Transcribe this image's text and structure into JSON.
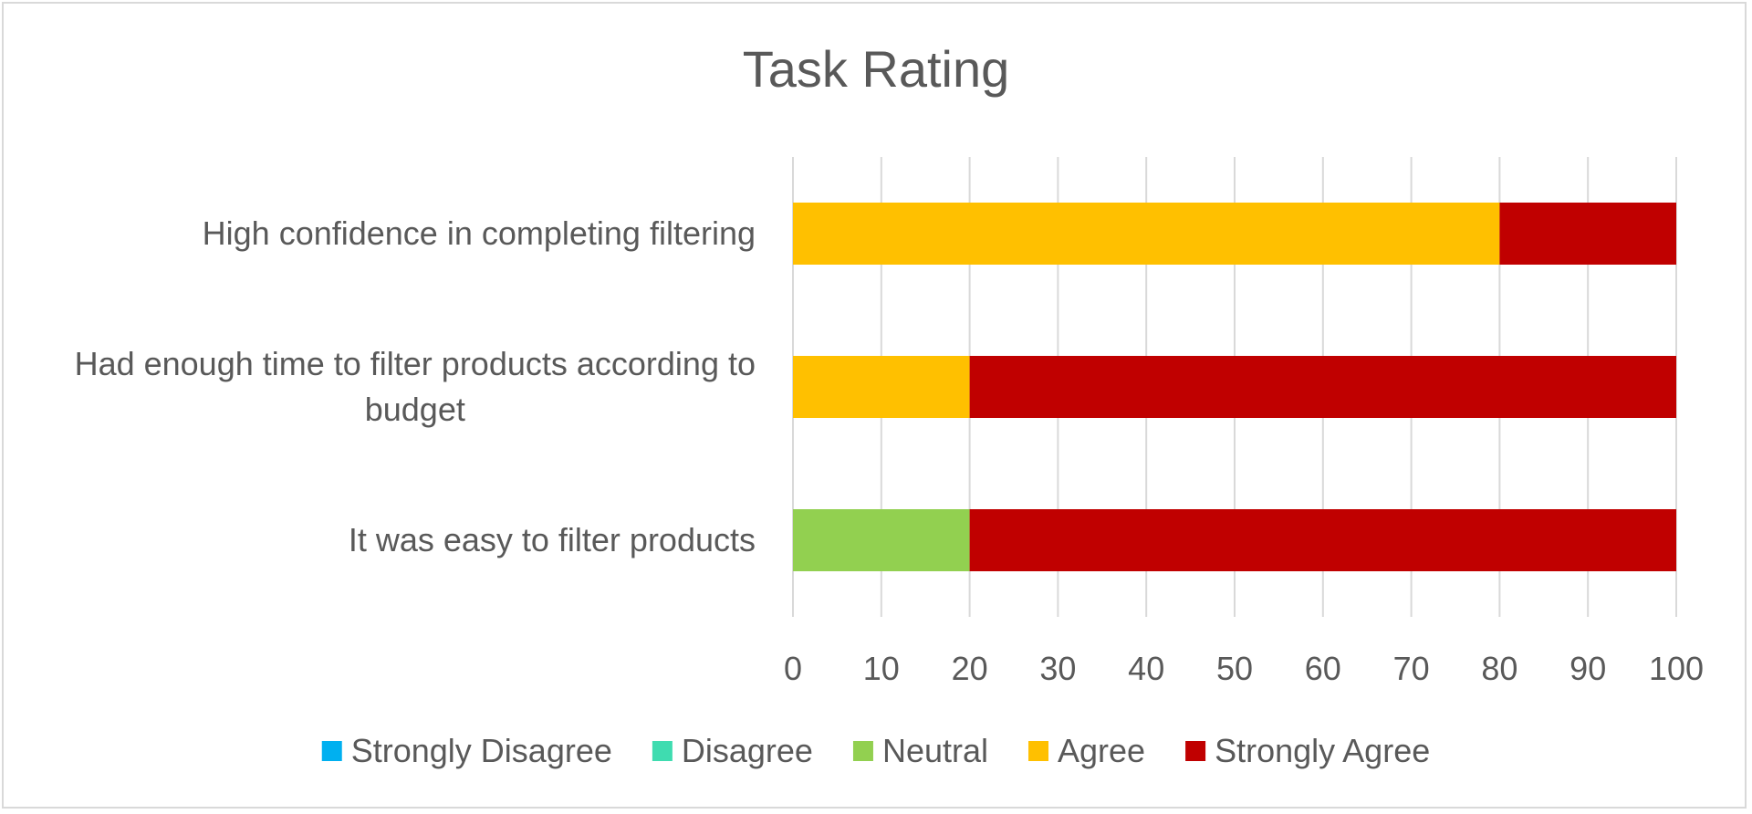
{
  "chart_data": {
    "type": "bar",
    "orientation": "horizontal",
    "stacked": true,
    "title": "Task Rating",
    "categories": [
      [
        "High confidence in completing filtering"
      ],
      [
        "Had enough time to filter products according to",
        "budget"
      ],
      [
        "It was easy to filter products"
      ]
    ],
    "series": [
      {
        "name": "Strongly Disagree",
        "color": "#00b0f0",
        "values": [
          0,
          0,
          0
        ]
      },
      {
        "name": "Disagree",
        "color": "#3fdcb0",
        "values": [
          0,
          0,
          0
        ]
      },
      {
        "name": "Neutral",
        "color": "#92d050",
        "values": [
          0,
          0,
          20
        ]
      },
      {
        "name": "Agree",
        "color": "#ffc000",
        "values": [
          80,
          20,
          0
        ]
      },
      {
        "name": "Strongly Agree",
        "color": "#c00000",
        "values": [
          20,
          80,
          80
        ]
      }
    ],
    "xlim": [
      0,
      100
    ],
    "xticks": [
      "0",
      "10",
      "20",
      "30",
      "40",
      "50",
      "60",
      "70",
      "80",
      "90",
      "100"
    ],
    "grid": true,
    "legend_position": "bottom"
  }
}
